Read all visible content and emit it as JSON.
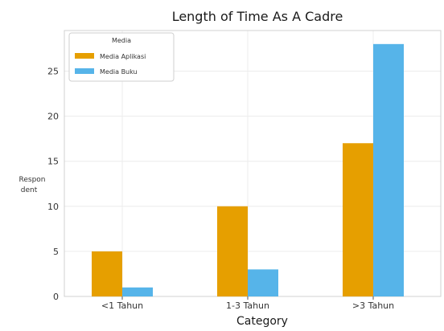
{
  "chart_data": {
    "type": "bar",
    "title": "Length of Time As A Cadre",
    "xlabel": "Category",
    "ylabel_lines": [
      "Respon",
      "dent"
    ],
    "categories": [
      "<1 Tahun",
      "1-3 Tahun",
      ">3 Tahun"
    ],
    "series": [
      {
        "name": "Media Aplikasi",
        "color": "#E69F00",
        "values": [
          5,
          10,
          17
        ]
      },
      {
        "name": "Media Buku",
        "color": "#56B4E9",
        "values": [
          1,
          3,
          28
        ]
      }
    ],
    "ylim": [
      0,
      29.5
    ],
    "yticks": [
      0,
      5,
      10,
      15,
      20,
      25
    ],
    "grid": true,
    "legend": {
      "title": "Media",
      "placement": "top-left"
    }
  }
}
